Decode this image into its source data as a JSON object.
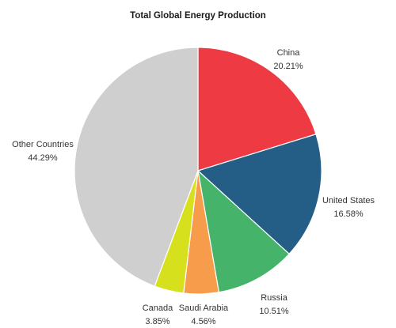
{
  "chart_data": {
    "type": "pie",
    "title": "Total Global Energy Production",
    "unit": "%",
    "start_angle_deg": 0,
    "direction": "clockwise",
    "slices": [
      {
        "label": "China",
        "value": 20.21,
        "value_text": "20.21%",
        "color": "#ee3a43"
      },
      {
        "label": "United States",
        "value": 16.58,
        "value_text": "16.58%",
        "color": "#245e87"
      },
      {
        "label": "Russia",
        "value": 10.51,
        "value_text": "10.51%",
        "color": "#46b36a"
      },
      {
        "label": "Saudi Arabia",
        "value": 4.56,
        "value_text": "4.56%",
        "color": "#f79c4a"
      },
      {
        "label": "Canada",
        "value": 3.85,
        "value_text": "3.85%",
        "color": "#d6e01c"
      },
      {
        "label": "Other Countries",
        "value": 44.29,
        "value_text": "44.29%",
        "color": "#d0cfd0"
      }
    ]
  }
}
